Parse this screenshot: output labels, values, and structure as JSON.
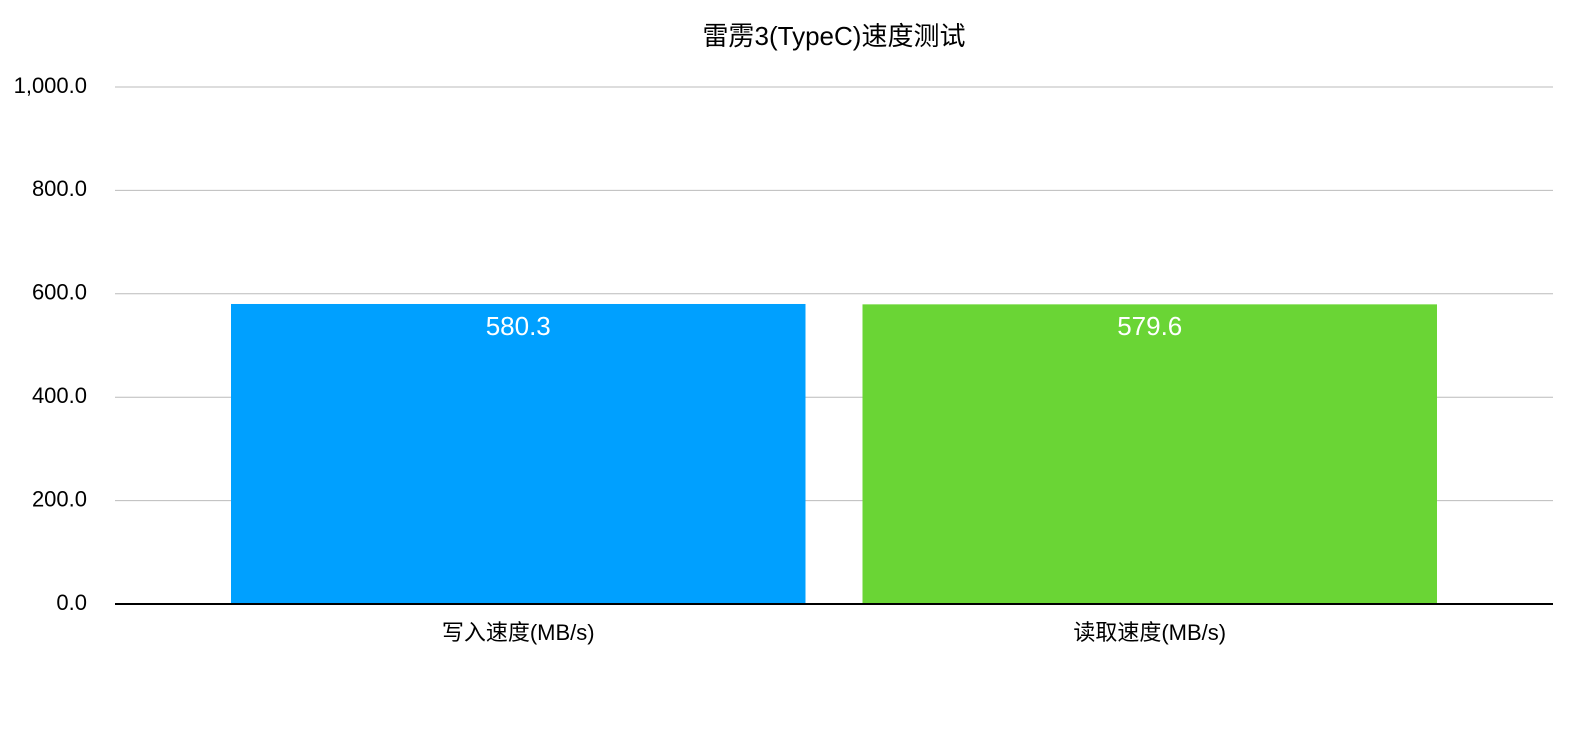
{
  "chart_data": {
    "type": "bar",
    "title": "雷雳3(TypeC)速度测试",
    "categories": [
      "写入速度(MB/s)",
      "读取速度(MB/s)"
    ],
    "values": [
      580.3,
      579.6
    ],
    "colors": [
      "#00a0ff",
      "#6ad535"
    ],
    "ylim": [
      0,
      1000
    ],
    "yticks": [
      {
        "value": 0,
        "label": "0.0"
      },
      {
        "value": 200,
        "label": "200.0"
      },
      {
        "value": 400,
        "label": "400.0"
      },
      {
        "value": 600,
        "label": "600.0"
      },
      {
        "value": 800,
        "label": "800.0"
      },
      {
        "value": 1000,
        "label": "1,000.0"
      }
    ],
    "grid": true
  }
}
